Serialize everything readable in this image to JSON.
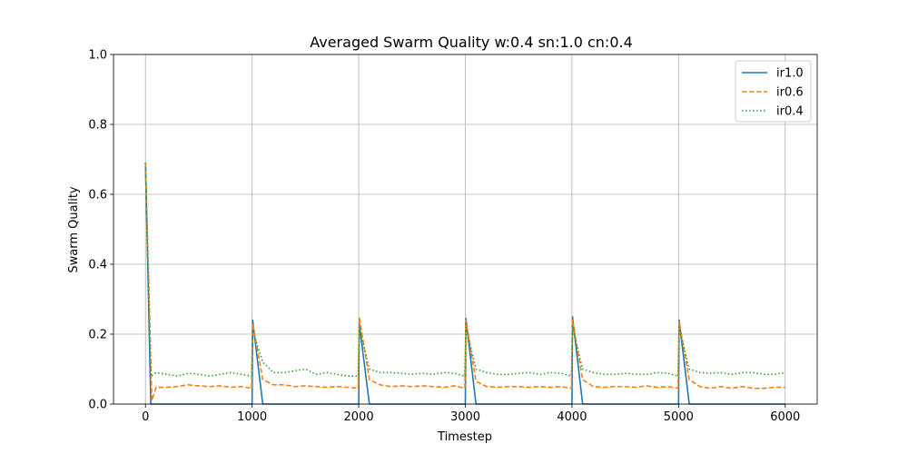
{
  "chart_data": {
    "type": "line",
    "title": "Averaged Swarm Quality w:0.4 sn:1.0 cn:0.4",
    "xlabel": "Timestep",
    "ylabel": "Swarm Quality",
    "xlim": [
      -300,
      6300
    ],
    "ylim": [
      0,
      1.0
    ],
    "xticks": [
      0,
      1000,
      2000,
      3000,
      4000,
      5000,
      6000
    ],
    "xtick_labels": [
      "0",
      "1000",
      "2000",
      "3000",
      "4000",
      "5000",
      "6000"
    ],
    "yticks": [
      0.0,
      0.2,
      0.4,
      0.6,
      0.8,
      1.0
    ],
    "ytick_labels": [
      "0.0",
      "0.2",
      "0.4",
      "0.6",
      "0.8",
      "1.0"
    ],
    "grid": true,
    "legend_position": "top-right",
    "series": [
      {
        "name": "ir1.0",
        "color": "#1f77b4",
        "style": "solid",
        "points": [
          [
            0,
            0.69
          ],
          [
            50,
            0.0
          ],
          [
            1000,
            0.0
          ],
          [
            1005,
            0.24
          ],
          [
            1100,
            0.0
          ],
          [
            2000,
            0.0
          ],
          [
            2005,
            0.23
          ],
          [
            2100,
            0.0
          ],
          [
            3000,
            0.0
          ],
          [
            3005,
            0.245
          ],
          [
            3100,
            0.0
          ],
          [
            4000,
            0.0
          ],
          [
            4005,
            0.25
          ],
          [
            4100,
            0.0
          ],
          [
            5000,
            0.0
          ],
          [
            5005,
            0.24
          ],
          [
            5100,
            0.0
          ],
          [
            6000,
            0.0
          ]
        ]
      },
      {
        "name": "ir0.6",
        "color": "#ff7f0e",
        "style": "dashed",
        "points": [
          [
            0,
            0.69
          ],
          [
            60,
            0.01
          ],
          [
            100,
            0.048
          ],
          [
            200,
            0.048
          ],
          [
            300,
            0.05
          ],
          [
            400,
            0.055
          ],
          [
            500,
            0.052
          ],
          [
            600,
            0.05
          ],
          [
            700,
            0.052
          ],
          [
            800,
            0.048
          ],
          [
            900,
            0.05
          ],
          [
            995,
            0.045
          ],
          [
            1005,
            0.23
          ],
          [
            1100,
            0.07
          ],
          [
            1200,
            0.055
          ],
          [
            1300,
            0.055
          ],
          [
            1400,
            0.05
          ],
          [
            1500,
            0.052
          ],
          [
            1600,
            0.05
          ],
          [
            1700,
            0.048
          ],
          [
            1800,
            0.05
          ],
          [
            1900,
            0.048
          ],
          [
            1995,
            0.045
          ],
          [
            2005,
            0.25
          ],
          [
            2100,
            0.07
          ],
          [
            2200,
            0.055
          ],
          [
            2300,
            0.05
          ],
          [
            2400,
            0.052
          ],
          [
            2500,
            0.05
          ],
          [
            2600,
            0.052
          ],
          [
            2700,
            0.05
          ],
          [
            2800,
            0.048
          ],
          [
            2900,
            0.052
          ],
          [
            2995,
            0.045
          ],
          [
            3005,
            0.24
          ],
          [
            3100,
            0.065
          ],
          [
            3200,
            0.05
          ],
          [
            3300,
            0.048
          ],
          [
            3400,
            0.05
          ],
          [
            3500,
            0.05
          ],
          [
            3600,
            0.048
          ],
          [
            3700,
            0.05
          ],
          [
            3800,
            0.048
          ],
          [
            3900,
            0.05
          ],
          [
            3995,
            0.045
          ],
          [
            4005,
            0.24
          ],
          [
            4100,
            0.07
          ],
          [
            4200,
            0.05
          ],
          [
            4300,
            0.048
          ],
          [
            4400,
            0.05
          ],
          [
            4500,
            0.05
          ],
          [
            4600,
            0.048
          ],
          [
            4700,
            0.052
          ],
          [
            4800,
            0.048
          ],
          [
            4900,
            0.05
          ],
          [
            4995,
            0.045
          ],
          [
            5005,
            0.235
          ],
          [
            5100,
            0.07
          ],
          [
            5200,
            0.05
          ],
          [
            5300,
            0.045
          ],
          [
            5400,
            0.05
          ],
          [
            5500,
            0.045
          ],
          [
            5600,
            0.05
          ],
          [
            5700,
            0.045
          ],
          [
            5800,
            0.045
          ],
          [
            5900,
            0.048
          ],
          [
            6000,
            0.048
          ]
        ]
      },
      {
        "name": "ir0.4",
        "color": "#2ca02c",
        "style": "dotted",
        "points": [
          [
            0,
            0.69
          ],
          [
            50,
            0.08
          ],
          [
            100,
            0.09
          ],
          [
            200,
            0.085
          ],
          [
            300,
            0.08
          ],
          [
            400,
            0.088
          ],
          [
            500,
            0.085
          ],
          [
            600,
            0.08
          ],
          [
            700,
            0.085
          ],
          [
            800,
            0.09
          ],
          [
            900,
            0.085
          ],
          [
            995,
            0.08
          ],
          [
            1005,
            0.21
          ],
          [
            1100,
            0.12
          ],
          [
            1200,
            0.09
          ],
          [
            1300,
            0.09
          ],
          [
            1400,
            0.095
          ],
          [
            1500,
            0.1
          ],
          [
            1600,
            0.085
          ],
          [
            1700,
            0.09
          ],
          [
            1800,
            0.085
          ],
          [
            1900,
            0.08
          ],
          [
            1995,
            0.08
          ],
          [
            2005,
            0.22
          ],
          [
            2100,
            0.1
          ],
          [
            2200,
            0.09
          ],
          [
            2300,
            0.09
          ],
          [
            2400,
            0.088
          ],
          [
            2500,
            0.085
          ],
          [
            2600,
            0.088
          ],
          [
            2700,
            0.085
          ],
          [
            2800,
            0.09
          ],
          [
            2900,
            0.088
          ],
          [
            2995,
            0.08
          ],
          [
            3005,
            0.22
          ],
          [
            3100,
            0.1
          ],
          [
            3200,
            0.09
          ],
          [
            3300,
            0.085
          ],
          [
            3400,
            0.085
          ],
          [
            3500,
            0.088
          ],
          [
            3600,
            0.09
          ],
          [
            3700,
            0.085
          ],
          [
            3800,
            0.09
          ],
          [
            3900,
            0.088
          ],
          [
            3995,
            0.08
          ],
          [
            4005,
            0.22
          ],
          [
            4100,
            0.1
          ],
          [
            4200,
            0.09
          ],
          [
            4300,
            0.085
          ],
          [
            4400,
            0.085
          ],
          [
            4500,
            0.088
          ],
          [
            4600,
            0.085
          ],
          [
            4700,
            0.085
          ],
          [
            4800,
            0.09
          ],
          [
            4900,
            0.088
          ],
          [
            4995,
            0.08
          ],
          [
            5005,
            0.22
          ],
          [
            5100,
            0.1
          ],
          [
            5200,
            0.09
          ],
          [
            5300,
            0.088
          ],
          [
            5400,
            0.09
          ],
          [
            5500,
            0.085
          ],
          [
            5600,
            0.09
          ],
          [
            5700,
            0.09
          ],
          [
            5800,
            0.085
          ],
          [
            5900,
            0.085
          ],
          [
            6000,
            0.09
          ]
        ]
      }
    ]
  }
}
